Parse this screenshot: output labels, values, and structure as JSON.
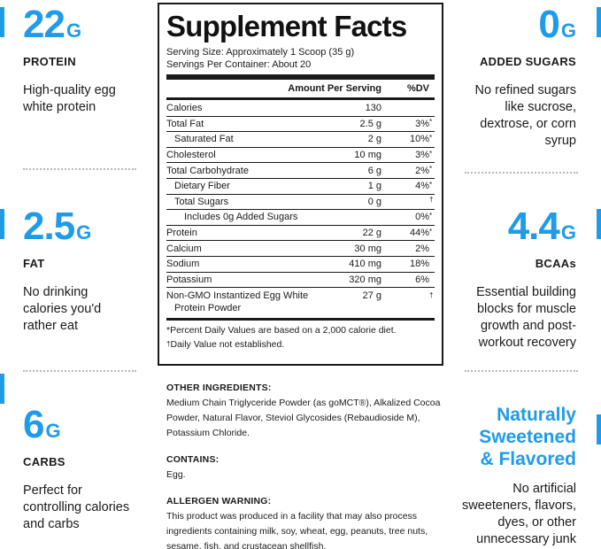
{
  "left_stats": [
    {
      "value": "22",
      "unit": "G",
      "caption": "PROTEIN",
      "desc": [
        "High-quality egg",
        "white protein"
      ]
    },
    {
      "value": "2.5",
      "unit": "G",
      "caption": "FAT",
      "desc": [
        "No drinking",
        "calories you'd",
        "rather eat"
      ]
    },
    {
      "value": "6",
      "unit": "G",
      "caption": "CARBS",
      "desc": [
        "Perfect for",
        "controlling calories",
        "and carbs"
      ]
    }
  ],
  "right_stats": [
    {
      "value": "0",
      "unit": "G",
      "caption": "ADDED SUGARS",
      "desc": [
        "No refined sugars",
        "like sucrose,",
        "dextrose, or corn",
        "syrup"
      ]
    },
    {
      "value": "4.4",
      "unit": "G",
      "caption": "BCAAs",
      "desc": [
        "Essential building",
        "blocks for muscle",
        "growth and post-",
        "workout recovery"
      ]
    }
  ],
  "sweetened": {
    "headline": [
      "Naturally",
      "Sweetened",
      "& Flavored"
    ],
    "desc": [
      "No artificial",
      "sweeteners, flavors,",
      "dyes, or other",
      "unnecessary junk"
    ]
  },
  "facts": {
    "title": "Supplement Facts",
    "serving_size": "Serving Size: Approximately 1 Scoop (35 g)",
    "servings_per_container": "Servings Per Container: About 20",
    "col_amount": "Amount Per Serving",
    "col_dv": "%DV",
    "rows": [
      {
        "name": "Calories",
        "amount": "130",
        "dv": "",
        "mark": ""
      },
      {
        "name": "Total Fat",
        "amount": "2.5 g",
        "dv": "3%",
        "mark": "*"
      },
      {
        "name": "Saturated Fat",
        "amount": "2 g",
        "dv": "10%",
        "mark": "*"
      },
      {
        "name": "Cholesterol",
        "amount": "10 mg",
        "dv": "3%",
        "mark": "*"
      },
      {
        "name": "Total Carbohydrate",
        "amount": "6 g",
        "dv": "2%",
        "mark": "*"
      },
      {
        "name": "Dietary Fiber",
        "amount": "1 g",
        "dv": "4%",
        "mark": "*"
      },
      {
        "name": "Total Sugars",
        "amount": "0 g",
        "dv": "",
        "mark": "†"
      },
      {
        "name": "Includes 0g Added Sugars",
        "amount": "",
        "dv": "0%",
        "mark": "*"
      },
      {
        "name": "Protein",
        "amount": "22 g",
        "dv": "44%",
        "mark": "*"
      },
      {
        "name": "Calcium",
        "amount": "30 mg",
        "dv": "2%",
        "mark": ""
      },
      {
        "name": "Sodium",
        "amount": "410 mg",
        "dv": "18%",
        "mark": ""
      },
      {
        "name": "Potassium",
        "amount": "320 mg",
        "dv": "6%",
        "mark": ""
      },
      {
        "name": "Non-GMO Instantized Egg White",
        "name2": "Protein Powder",
        "amount": "27 g",
        "dv": "",
        "mark": "†"
      }
    ],
    "footnote_1": "*Percent Daily Values are based on a 2,000 calorie diet.",
    "footnote_2_mark": "†",
    "footnote_2": "Daily Value not established."
  },
  "ingredients": {
    "other_heading": "OTHER INGREDIENTS:",
    "other_text": "Medium Chain Triglyceride Powder (as goMCT®), Alkalized Cocoa Powder, Natural Flavor, Steviol Glycosides (Rebaudioside M), Potassium Chloride.",
    "contains_heading": "CONTAINS:",
    "contains_text": "Egg.",
    "allergen_heading": "ALLERGEN WARNING:",
    "allergen_text": "This product was produced in a facility that may also process ingredients containing milk, soy, wheat, egg, peanuts, tree nuts, sesame, fish, and crustacean shellfish."
  },
  "colors": {
    "accent": "#1e9be9",
    "text": "#1a1a1a"
  }
}
